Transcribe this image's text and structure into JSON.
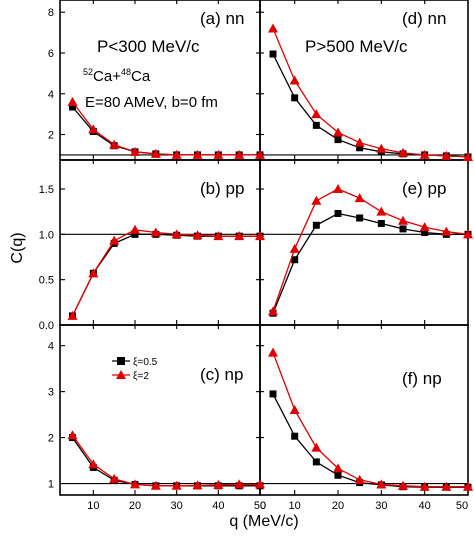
{
  "chart_data": {
    "type": "line",
    "xlabel": "q (MeV/c)",
    "ylabel": "C(q)",
    "xlim": [
      2,
      50
    ],
    "x_ticks": [
      10,
      20,
      30,
      40,
      50
    ],
    "x_tick_labels_left": [
      "10",
      "20",
      "30",
      "40",
      "50"
    ],
    "x_tick_labels_right": [
      "0",
      "10",
      "20",
      "30",
      "40",
      "50"
    ],
    "x": [
      5,
      10,
      15,
      20,
      25,
      30,
      35,
      40,
      45,
      50
    ],
    "legend": {
      "panel": "c",
      "entries": [
        {
          "label": "ξ=0.5",
          "color": "#000000",
          "marker": "square"
        },
        {
          "label": "ξ=2",
          "color": "#e00000",
          "marker": "triangle"
        }
      ]
    },
    "annotations": {
      "left": [
        "P<300 MeV/c",
        "Ca+Ca",
        "E=80 AMeV, b=0 fm"
      ],
      "right": "P>500 MeV/c",
      "isotope_a_mass": "52",
      "isotope_a": "Ca",
      "plus": "+",
      "isotope_b_mass": "48",
      "isotope_b": "Ca"
    },
    "rows": [
      {
        "name": "nn",
        "ylim": [
          0.75,
          8.6
        ],
        "y_ticks": [
          2,
          4,
          6,
          8
        ],
        "y_tick_labels": [
          "2",
          "4",
          "6",
          "8"
        ],
        "reference_line": 1.0,
        "panels": [
          {
            "id": "a",
            "label": "(a) nn",
            "series": [
              {
                "name": "ξ=0.5",
                "values": [
                  3.35,
                  2.15,
                  1.45,
                  1.15,
                  1.05,
                  1.0,
                  1.0,
                  1.0,
                  1.0,
                  1.0
                ]
              },
              {
                "name": "ξ=2",
                "values": [
                  3.6,
                  2.25,
                  1.5,
                  1.15,
                  1.05,
                  1.0,
                  1.0,
                  1.0,
                  1.0,
                  1.0
                ]
              }
            ]
          },
          {
            "id": "d",
            "label": "(d) nn",
            "series": [
              {
                "name": "ξ=0.5",
                "values": [
                  5.95,
                  3.8,
                  2.45,
                  1.75,
                  1.35,
                  1.15,
                  1.05,
                  1.0,
                  0.95,
                  0.9
                ]
              },
              {
                "name": "ξ=2",
                "values": [
                  7.2,
                  4.65,
                  3.0,
                  2.1,
                  1.6,
                  1.3,
                  1.1,
                  1.0,
                  0.95,
                  0.9
                ]
              }
            ]
          }
        ]
      },
      {
        "name": "pp",
        "ylim": [
          0.0,
          1.82
        ],
        "y_ticks": [
          0.0,
          0.5,
          1.0,
          1.5
        ],
        "y_tick_labels": [
          "0.0",
          "0.5",
          "1.0",
          "1.5"
        ],
        "reference_line": 1.0,
        "panels": [
          {
            "id": "b",
            "label": "(b) pp",
            "series": [
              {
                "name": "ξ=0.5",
                "values": [
                  0.1,
                  0.57,
                  0.9,
                  1.0,
                  1.0,
                  0.99,
                  0.98,
                  0.98,
                  0.98,
                  0.98
                ]
              },
              {
                "name": "ξ=2",
                "values": [
                  0.1,
                  0.57,
                  0.93,
                  1.05,
                  1.02,
                  1.0,
                  0.99,
                  0.98,
                  0.98,
                  0.98
                ]
              }
            ]
          },
          {
            "id": "e",
            "label": "(e) pp",
            "series": [
              {
                "name": "ξ=0.5",
                "values": [
                  0.13,
                  0.72,
                  1.1,
                  1.23,
                  1.18,
                  1.12,
                  1.06,
                  1.02,
                  1.0,
                  1.0
                ]
              },
              {
                "name": "ξ=2",
                "values": [
                  0.15,
                  0.84,
                  1.37,
                  1.5,
                  1.4,
                  1.25,
                  1.15,
                  1.08,
                  1.03,
                  1.0
                ]
              }
            ]
          }
        ]
      },
      {
        "name": "np",
        "ylim": [
          0.75,
          4.45
        ],
        "y_ticks": [
          1,
          2,
          3,
          4
        ],
        "y_tick_labels": [
          "1",
          "2",
          "3",
          "4"
        ],
        "reference_line": 1.0,
        "panels": [
          {
            "id": "c",
            "label": "(c) np",
            "series": [
              {
                "name": "ξ=0.5",
                "values": [
                  2.0,
                  1.35,
                  1.07,
                  0.98,
                  0.95,
                  0.95,
                  0.95,
                  0.95,
                  0.95,
                  0.95
                ]
              },
              {
                "name": "ξ=2",
                "values": [
                  2.05,
                  1.42,
                  1.1,
                  0.98,
                  0.95,
                  0.95,
                  0.96,
                  0.97,
                  0.98,
                  0.98
                ]
              }
            ]
          },
          {
            "id": "f",
            "label": "(f) np",
            "series": [
              {
                "name": "ξ=0.5",
                "values": [
                  2.95,
                  2.03,
                  1.47,
                  1.18,
                  1.02,
                  0.97,
                  0.93,
                  0.92,
                  0.92,
                  0.92
                ]
              },
              {
                "name": "ξ=2",
                "values": [
                  3.85,
                  2.6,
                  1.78,
                  1.33,
                  1.08,
                  0.98,
                  0.95,
                  0.93,
                  0.93,
                  0.93
                ]
              }
            ]
          }
        ]
      }
    ]
  }
}
